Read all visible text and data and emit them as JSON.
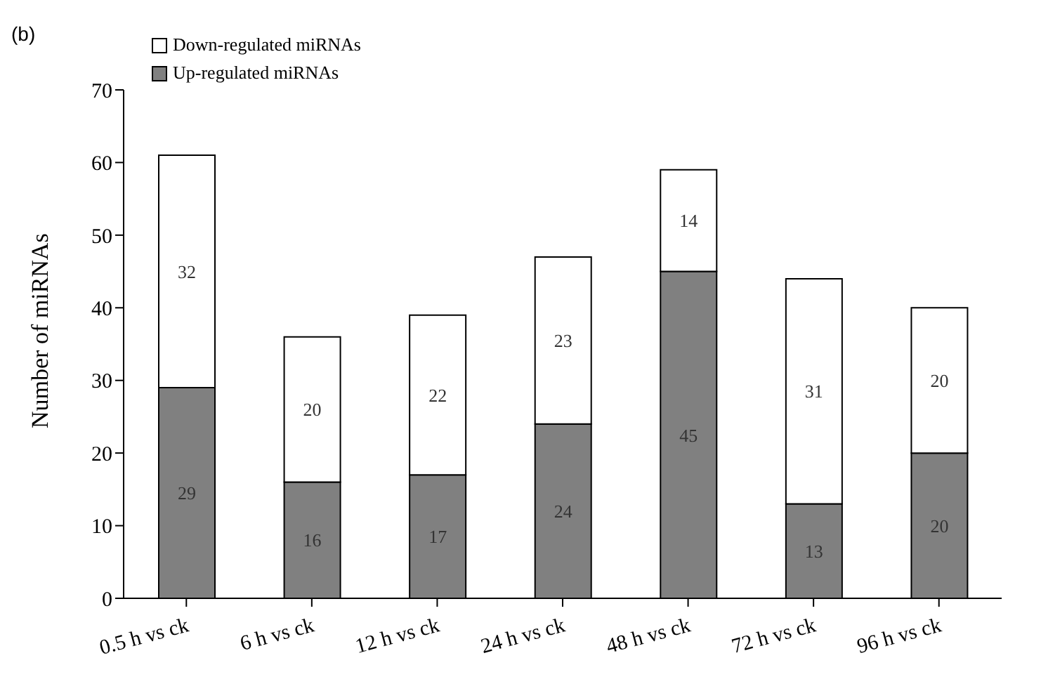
{
  "chart_data": {
    "type": "bar",
    "stacked": true,
    "ylabel": "Number of miRNAs",
    "categories": [
      "0.5 h vs ck",
      "6 h vs ck",
      "12 h vs ck",
      "24 h vs ck",
      "48 h vs ck",
      "72 h vs ck",
      "96 h vs ck"
    ],
    "series": [
      {
        "name": "Up-regulated miRNAs",
        "color": "#808080",
        "values": [
          29,
          16,
          17,
          24,
          45,
          13,
          20
        ]
      },
      {
        "name": "Down-regulated miRNAs",
        "color": "#ffffff",
        "values": [
          32,
          20,
          22,
          23,
          14,
          31,
          20
        ]
      }
    ],
    "ylim": [
      0,
      70
    ],
    "yticks": [
      0,
      10,
      20,
      30,
      40,
      50,
      60,
      70
    ],
    "grid": false,
    "legend": "top",
    "data_labels": true,
    "annotations": [
      "(b)"
    ]
  }
}
